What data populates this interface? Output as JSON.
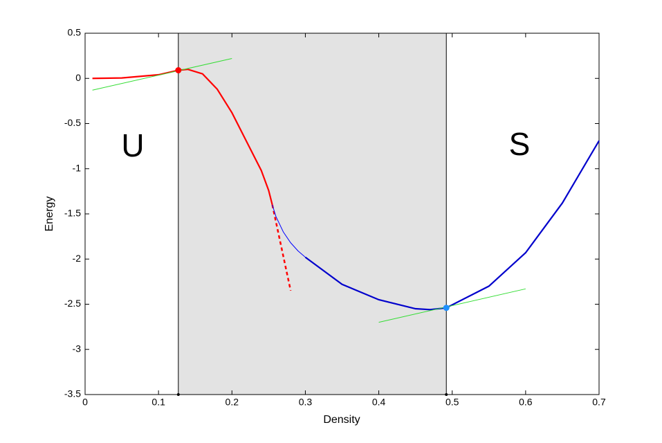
{
  "chart_data": {
    "type": "line",
    "xlabel": "Density",
    "ylabel": "Energy",
    "xlim": [
      0,
      0.7
    ],
    "ylim": [
      -3.5,
      0.5
    ],
    "xticks": [
      0,
      0.1,
      0.2,
      0.3,
      0.4,
      0.5,
      0.6,
      0.7
    ],
    "yticks": [
      -3.5,
      -3,
      -2.5,
      -2,
      -1.5,
      -1,
      -0.5,
      0,
      0.5
    ],
    "shaded_region": {
      "x": [
        0.127,
        0.492
      ],
      "color": "#e3e3e3"
    },
    "series": [
      {
        "color": "#ff0000",
        "style": "thick",
        "x": [
          0.01,
          0.05,
          0.1,
          0.127,
          0.14,
          0.16,
          0.18,
          0.2,
          0.22,
          0.24,
          0.25,
          0.255
        ],
        "values": [
          0,
          0.005,
          0.04,
          0.09,
          0.1,
          0.05,
          -0.12,
          -0.38,
          -0.7,
          -1.02,
          -1.24,
          -1.4
        ]
      },
      {
        "color": "#ff0000",
        "style": "dashed",
        "x": [
          0.255,
          0.28
        ],
        "values": [
          -1.4,
          -2.35
        ]
      },
      {
        "color": "#0000ff",
        "style": "thin",
        "x": [
          0.255,
          0.26,
          0.27,
          0.28,
          0.29,
          0.3
        ],
        "values": [
          -1.4,
          -1.53,
          -1.7,
          -1.82,
          -1.91,
          -1.98
        ]
      },
      {
        "color": "#0000cc",
        "style": "thick",
        "x": [
          0.3,
          0.35,
          0.4,
          0.45,
          0.47,
          0.492,
          0.55,
          0.6,
          0.65,
          0.7
        ],
        "values": [
          -1.98,
          -2.28,
          -2.45,
          -2.55,
          -2.56,
          -2.54,
          -2.3,
          -1.93,
          -1.38,
          -0.69
        ]
      },
      {
        "color": "#33dd33",
        "style": "thin",
        "x": [
          0.01,
          0.2
        ],
        "values": [
          -0.13,
          0.22
        ]
      },
      {
        "color": "#33dd33",
        "style": "thin",
        "x": [
          0.4,
          0.6
        ],
        "values": [
          -2.7,
          -2.33
        ]
      }
    ],
    "points": [
      {
        "x": 0.127,
        "y": 0.09,
        "color": "#ff0000"
      },
      {
        "x": 0.492,
        "y": -2.54,
        "color": "#1e90ff"
      }
    ],
    "annotations": [
      "U",
      "S"
    ]
  }
}
